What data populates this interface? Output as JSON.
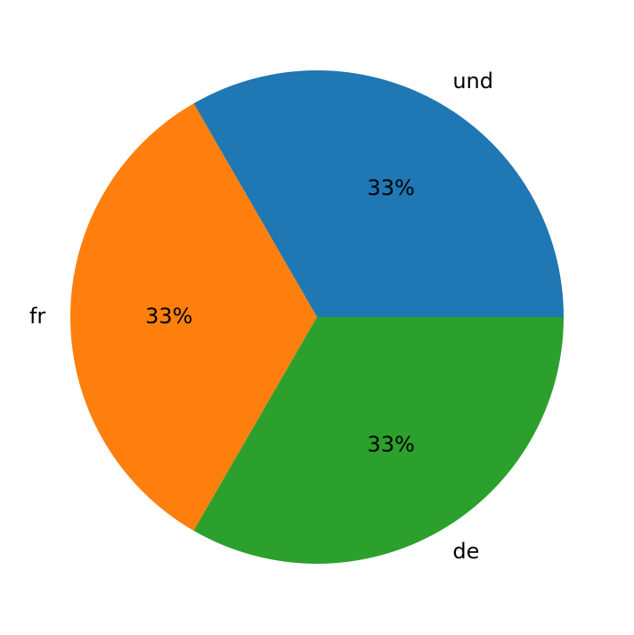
{
  "chart_data": {
    "type": "pie",
    "categories": [
      "und",
      "fr",
      "de"
    ],
    "values": [
      33,
      33,
      33
    ],
    "value_labels": [
      "33%",
      "33%",
      "33%"
    ],
    "colors": [
      "#1f77b4",
      "#ff7f0e",
      "#2ca02c"
    ]
  }
}
